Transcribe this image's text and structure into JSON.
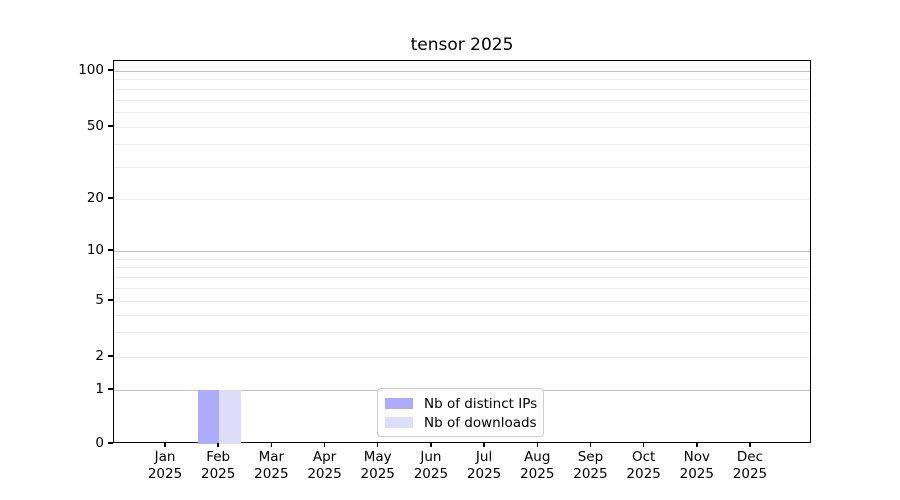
{
  "page": {
    "background": "#ffffff"
  },
  "chart_data": {
    "type": "bar",
    "title": "tensor 2025",
    "xlabel": "",
    "ylabel": "",
    "scale": "symlog",
    "ylim": [
      0,
      115
    ],
    "months": [
      "Jan",
      "Feb",
      "Mar",
      "Apr",
      "May",
      "Jun",
      "Jul",
      "Aug",
      "Sep",
      "Oct",
      "Nov",
      "Dec"
    ],
    "year": "2025",
    "yticks": [
      0,
      1,
      2,
      5,
      10,
      20,
      50,
      100
    ],
    "series": [
      {
        "name": "Nb of distinct IPs",
        "color": "#adabfa",
        "values": [
          0,
          1,
          0,
          0,
          0,
          0,
          0,
          0,
          0,
          0,
          0,
          0
        ]
      },
      {
        "name": "Nb of downloads",
        "color": "#ddddfa",
        "values": [
          0,
          1,
          0,
          0,
          0,
          0,
          0,
          0,
          0,
          0,
          0,
          0
        ]
      }
    ],
    "grid": {
      "major_lines": [
        1,
        10,
        100
      ],
      "minor_lines": [
        2,
        3,
        4,
        5,
        6,
        7,
        8,
        9,
        20,
        30,
        40,
        50,
        60,
        70,
        80,
        90
      ],
      "major_color": "#c3c3c3",
      "minor_color": "#ececec"
    },
    "legend": {
      "position": "lower center"
    }
  }
}
